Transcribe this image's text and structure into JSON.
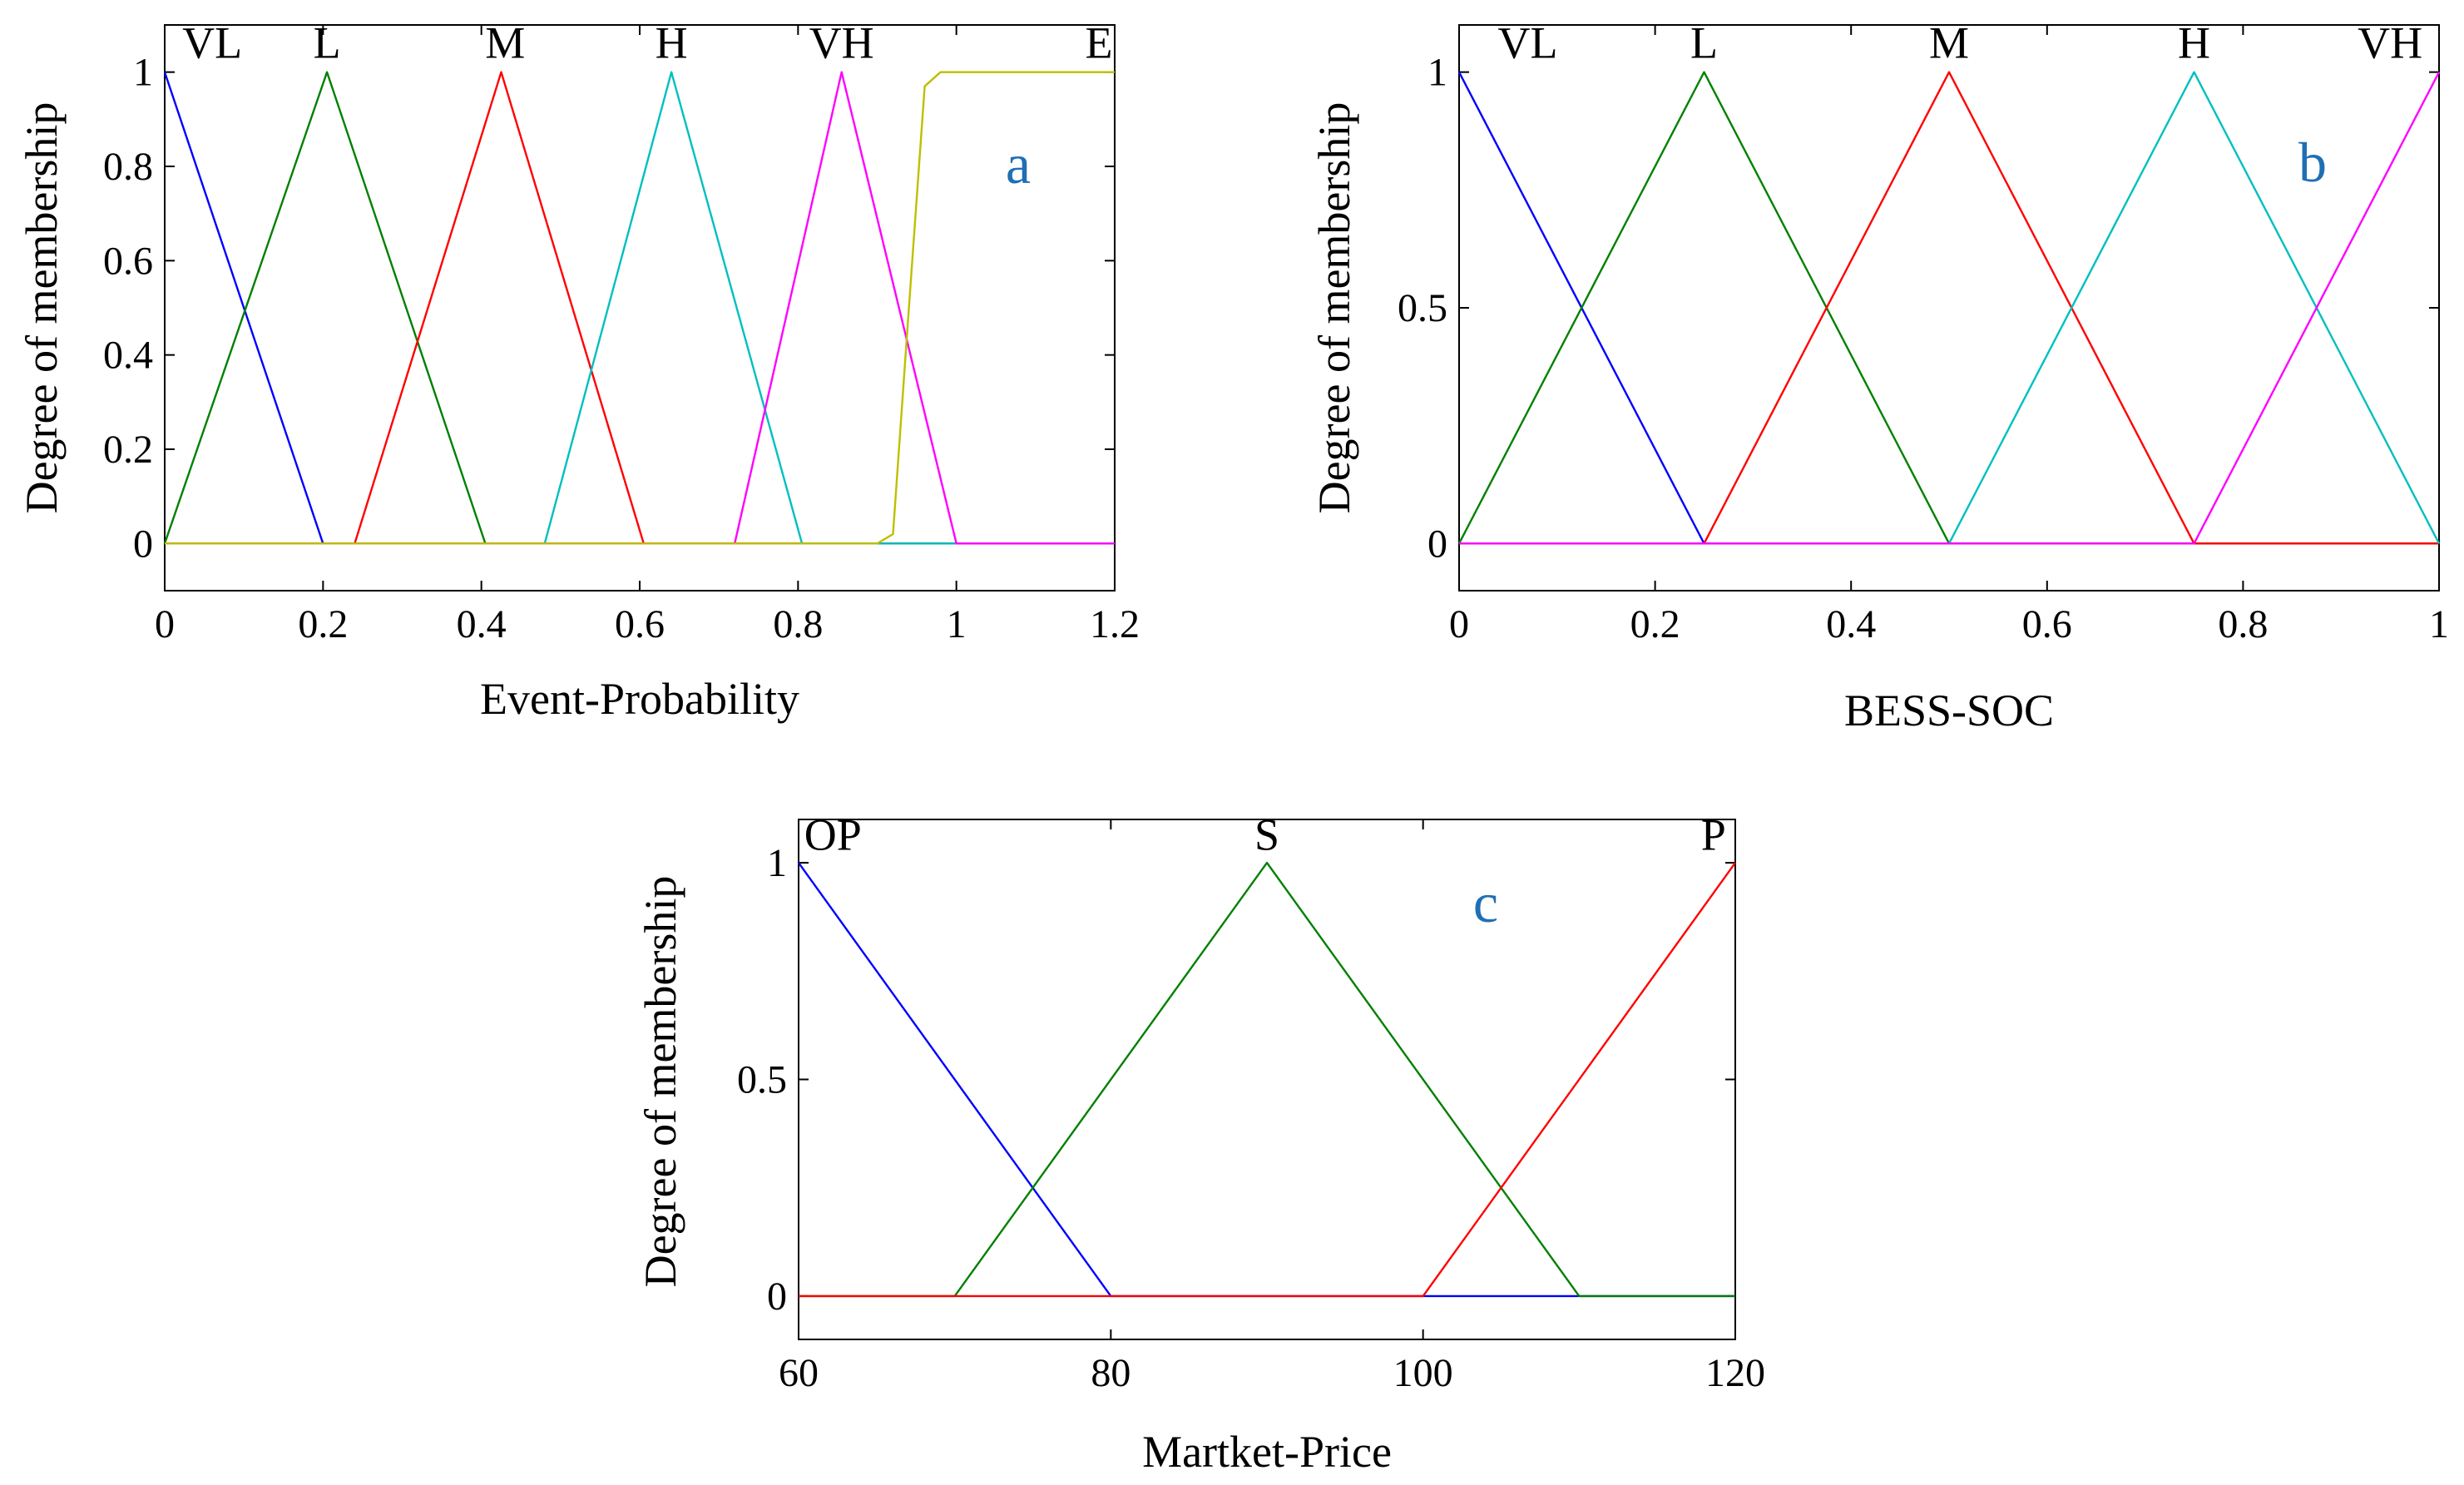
{
  "figure": {
    "background": "#ffffff"
  },
  "chart_data": [
    {
      "type": "line",
      "panel_label": "a",
      "panel_label_color": "#1f6fb4",
      "xlabel": "Event-Probability",
      "ylabel": "Degree of membership",
      "xlim": [
        0,
        1.2
      ],
      "ylim": [
        -0.1,
        1.1
      ],
      "xticks": [
        0,
        0.2,
        0.4,
        0.6,
        0.8,
        1,
        1.2
      ],
      "xtick_labels": [
        "0",
        "0.2",
        "0.4",
        "0.6",
        "0.8",
        "1",
        "1.2"
      ],
      "yticks": [
        0,
        0.2,
        0.4,
        0.6,
        0.8,
        1
      ],
      "ytick_labels": [
        "0",
        "0.2",
        "0.4",
        "0.6",
        "0.8",
        "1"
      ],
      "series": [
        {
          "name": "VL",
          "color": "#0000ff",
          "x": [
            0,
            0.2,
            1.2
          ],
          "y": [
            1,
            0,
            0
          ],
          "label_at": [
            0.06,
            1.03
          ]
        },
        {
          "name": "L",
          "color": "#008000",
          "x": [
            0,
            0.205,
            0.405,
            1.2
          ],
          "y": [
            0,
            1,
            0,
            0
          ],
          "label_at": [
            0.205,
            1.03
          ]
        },
        {
          "name": "M",
          "color": "#ff0000",
          "x": [
            0,
            0.24,
            0.425,
            0.605,
            1.2
          ],
          "y": [
            0,
            0,
            1,
            0,
            0
          ],
          "label_at": [
            0.43,
            1.03
          ]
        },
        {
          "name": "H",
          "color": "#00bfbf",
          "x": [
            0,
            0.48,
            0.64,
            0.805,
            1.2
          ],
          "y": [
            0,
            0,
            1,
            0,
            0
          ],
          "label_at": [
            0.64,
            1.03
          ]
        },
        {
          "name": "VH",
          "color": "#ff00ff",
          "x": [
            0,
            0.72,
            0.855,
            1.0,
            1.2
          ],
          "y": [
            0,
            0,
            1,
            0,
            0
          ],
          "label_at": [
            0.855,
            1.03
          ]
        },
        {
          "name": "E",
          "color": "#bfbf00",
          "x": [
            0,
            0.9,
            0.92,
            0.94,
            0.96,
            0.98,
            1.2
          ],
          "y": [
            0,
            0,
            0.02,
            0.5,
            0.97,
            1,
            1
          ],
          "label_at": [
            1.18,
            1.03
          ]
        }
      ]
    },
    {
      "type": "line",
      "panel_label": "b",
      "panel_label_color": "#1f6fb4",
      "xlabel": "BESS-SOC",
      "ylabel": "Degree of membership",
      "xlim": [
        0,
        1
      ],
      "ylim": [
        -0.1,
        1.1
      ],
      "xticks": [
        0,
        0.2,
        0.4,
        0.6,
        0.8,
        1
      ],
      "xtick_labels": [
        "0",
        "0.2",
        "0.4",
        "0.6",
        "0.8",
        "1"
      ],
      "yticks": [
        0,
        0.5,
        1
      ],
      "ytick_labels": [
        "0",
        "0.5",
        "1"
      ],
      "series": [
        {
          "name": "VL",
          "color": "#0000ff",
          "x": [
            0,
            0.25,
            1
          ],
          "y": [
            1,
            0,
            0
          ],
          "label_at": [
            0.07,
            1.03
          ]
        },
        {
          "name": "L",
          "color": "#008000",
          "x": [
            0,
            0.25,
            0.5,
            1
          ],
          "y": [
            0,
            1,
            0,
            0
          ],
          "label_at": [
            0.25,
            1.03
          ]
        },
        {
          "name": "M",
          "color": "#ff0000",
          "x": [
            0,
            0.25,
            0.5,
            0.75,
            1
          ],
          "y": [
            0,
            0,
            1,
            0,
            0
          ],
          "label_at": [
            0.5,
            1.03
          ]
        },
        {
          "name": "H",
          "color": "#00bfbf",
          "x": [
            0,
            0.5,
            0.75,
            1
          ],
          "y": [
            0,
            0,
            1,
            0
          ],
          "label_at": [
            0.75,
            1.03
          ]
        },
        {
          "name": "VH",
          "color": "#ff00ff",
          "x": [
            0,
            0.75,
            1
          ],
          "y": [
            0,
            0,
            1
          ],
          "label_at": [
            0.95,
            1.03
          ]
        }
      ]
    },
    {
      "type": "line",
      "panel_label": "c",
      "panel_label_color": "#1f6fb4",
      "xlabel": "Martket-Price",
      "ylabel": "Degree of membership",
      "xlim": [
        60,
        120
      ],
      "ylim": [
        -0.1,
        1.1
      ],
      "xticks": [
        60,
        80,
        100,
        120
      ],
      "xtick_labels": [
        "60",
        "80",
        "100",
        "120"
      ],
      "yticks": [
        0,
        0.5,
        1
      ],
      "ytick_labels": [
        "0",
        "0.5",
        "1"
      ],
      "series": [
        {
          "name": "OP",
          "color": "#0000ff",
          "x": [
            60,
            80,
            120
          ],
          "y": [
            1,
            0,
            0
          ],
          "label_at": [
            62.2,
            1.03
          ]
        },
        {
          "name": "S",
          "color": "#008000",
          "x": [
            60,
            70,
            90,
            110,
            120
          ],
          "y": [
            0,
            0,
            1,
            0,
            0
          ],
          "label_at": [
            90,
            1.03
          ]
        },
        {
          "name": "P",
          "color": "#ff0000",
          "x": [
            60,
            100,
            120
          ],
          "y": [
            0,
            0,
            1
          ],
          "label_at": [
            118.6,
            1.03
          ]
        }
      ]
    }
  ]
}
